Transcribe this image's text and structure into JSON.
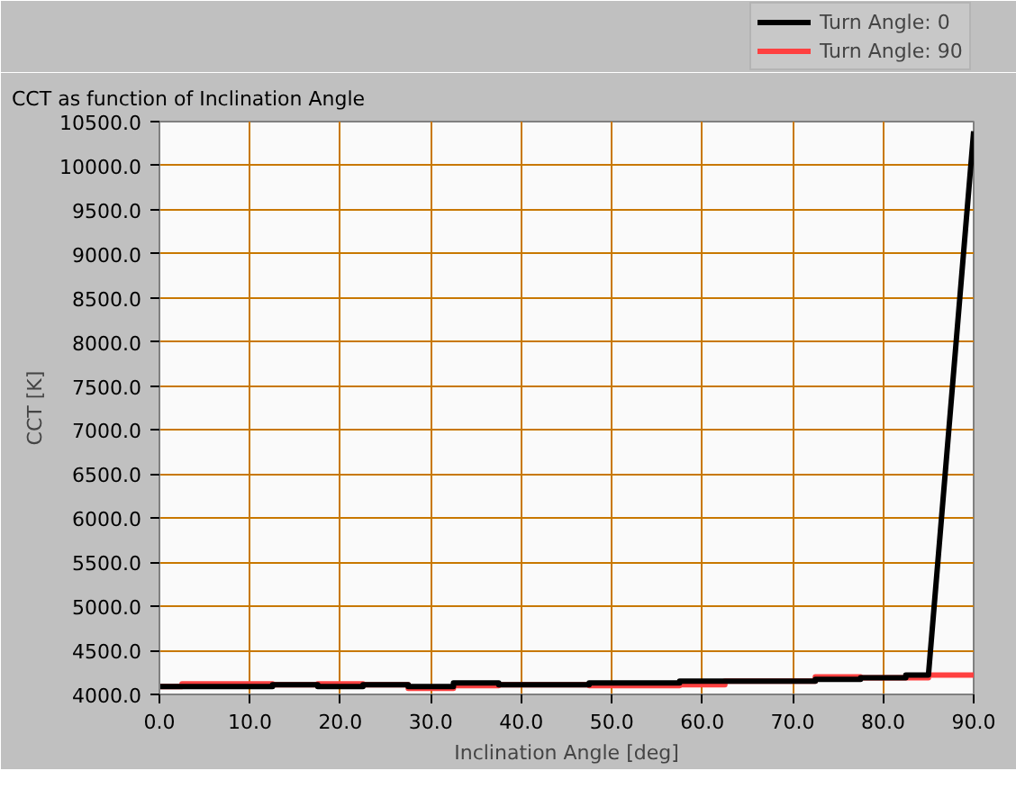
{
  "chart_data": {
    "type": "line",
    "title": "CCT as function of Inclination Angle",
    "xlabel": "Inclination Angle [deg]",
    "ylabel": "CCT [K]",
    "series": [
      {
        "name": "Turn Angle: 0",
        "color": "#000000",
        "x": [
          0,
          12.5,
          12.5,
          17.5,
          17.5,
          22.5,
          22.5,
          27.5,
          27.5,
          32.5,
          32.5,
          37.5,
          37.5,
          47.5,
          47.5,
          57.5,
          57.5,
          72.5,
          72.5,
          77.5,
          77.5,
          82.5,
          82.5,
          85,
          90
        ],
        "values": [
          4090,
          4090,
          4110,
          4110,
          4090,
          4090,
          4110,
          4110,
          4090,
          4090,
          4130,
          4130,
          4110,
          4110,
          4130,
          4130,
          4150,
          4150,
          4170,
          4170,
          4190,
          4190,
          4220,
          4220,
          10390
        ]
      },
      {
        "name": "Turn Angle: 90",
        "color": "#ff4040",
        "x": [
          0,
          2.5,
          2.5,
          12.5,
          12.5,
          17.5,
          17.5,
          22.5,
          22.5,
          27.5,
          27.5,
          32.5,
          32.5,
          37.5,
          37.5,
          47.5,
          47.5,
          57.5,
          57.5,
          62.5,
          62.5,
          72.5,
          72.5,
          77.5,
          77.5,
          85,
          85,
          90
        ],
        "values": [
          4090,
          4090,
          4120,
          4120,
          4110,
          4110,
          4120,
          4120,
          4110,
          4110,
          4070,
          4070,
          4100,
          4100,
          4110,
          4110,
          4100,
          4100,
          4110,
          4110,
          4150,
          4150,
          4200,
          4200,
          4190,
          4190,
          4220,
          4220
        ]
      }
    ],
    "xlim": [
      0,
      90
    ],
    "ylim": [
      4000,
      10500
    ],
    "xticks": [
      {
        "value": 0,
        "label": "0.0"
      },
      {
        "value": 10,
        "label": "10.0"
      },
      {
        "value": 20,
        "label": "20.0"
      },
      {
        "value": 30,
        "label": "30.0"
      },
      {
        "value": 40,
        "label": "40.0"
      },
      {
        "value": 50,
        "label": "50.0"
      },
      {
        "value": 60,
        "label": "60.0"
      },
      {
        "value": 70,
        "label": "70.0"
      },
      {
        "value": 80,
        "label": "80.0"
      },
      {
        "value": 90,
        "label": "90.0"
      }
    ],
    "yticks": [
      {
        "value": 4000,
        "label": "4000.0"
      },
      {
        "value": 4500,
        "label": "4500.0"
      },
      {
        "value": 5000,
        "label": "5000.0"
      },
      {
        "value": 5500,
        "label": "5500.0"
      },
      {
        "value": 6000,
        "label": "6000.0"
      },
      {
        "value": 6500,
        "label": "6500.0"
      },
      {
        "value": 7000,
        "label": "7000.0"
      },
      {
        "value": 7500,
        "label": "7500.0"
      },
      {
        "value": 8000,
        "label": "8000.0"
      },
      {
        "value": 8500,
        "label": "8500.0"
      },
      {
        "value": 9000,
        "label": "9000.0"
      },
      {
        "value": 9500,
        "label": "9500.0"
      },
      {
        "value": 10000,
        "label": "10000.0"
      },
      {
        "value": 10500,
        "label": "10500.0"
      }
    ],
    "grid": true,
    "legend": "top right",
    "marker": "none",
    "line_style": "solid"
  }
}
